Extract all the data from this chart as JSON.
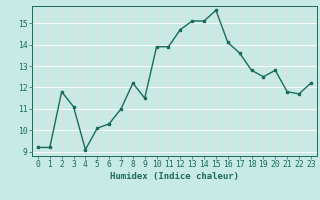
{
  "x": [
    0,
    1,
    2,
    3,
    4,
    5,
    6,
    7,
    8,
    9,
    10,
    11,
    12,
    13,
    14,
    15,
    16,
    17,
    18,
    19,
    20,
    21,
    22,
    23
  ],
  "y": [
    9.2,
    9.2,
    11.8,
    11.1,
    9.1,
    10.1,
    10.3,
    11.0,
    12.2,
    11.5,
    13.9,
    13.9,
    14.7,
    15.1,
    15.1,
    15.6,
    14.1,
    13.6,
    12.8,
    12.5,
    12.8,
    11.8,
    11.7,
    12.2
  ],
  "line_color": "#1a6b5e",
  "marker": "s",
  "marker_size": 2.0,
  "line_width": 1.0,
  "bg_color": "#c8eae4",
  "grid_color": "#ffffff",
  "grid_pink_color": "#f0d8d8",
  "xlabel": "Humidex (Indice chaleur)",
  "xlim_min": -0.5,
  "xlim_max": 23.5,
  "ylim_min": 8.8,
  "ylim_max": 15.8,
  "yticks": [
    9,
    10,
    11,
    12,
    13,
    14,
    15
  ],
  "tick_color": "#1a6b5e",
  "label_fontsize": 6.5,
  "tick_fontsize": 5.8
}
